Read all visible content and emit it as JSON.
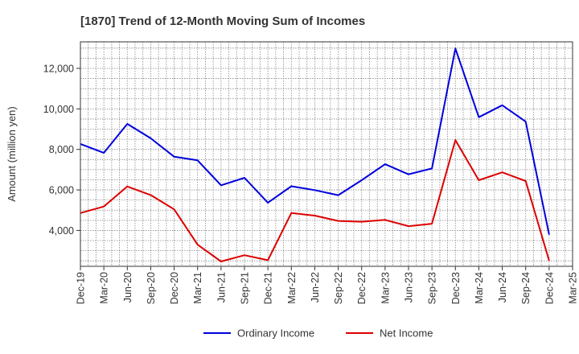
{
  "chart_data": {
    "type": "line",
    "title": "[1870]  Trend of 12-Month Moving Sum of Incomes",
    "xlabel": "",
    "ylabel": "Amount (million yen)",
    "categories": [
      "Dec-19",
      "Mar-20",
      "Jun-20",
      "Sep-20",
      "Dec-20",
      "Mar-21",
      "Jun-21",
      "Sep-21",
      "Dec-21",
      "Mar-22",
      "Jun-22",
      "Sep-22",
      "Dec-22",
      "Mar-23",
      "Jun-23",
      "Sep-23",
      "Dec-23",
      "Mar-24",
      "Jun-24",
      "Sep-24",
      "Dec-24",
      "Mar-25"
    ],
    "y_ticks": [
      4000,
      6000,
      8000,
      10000,
      12000
    ],
    "y_tick_labels": [
      "4,000",
      "6,000",
      "8,000",
      "10,000",
      "12,000"
    ],
    "ylim": [
      2230,
      13310
    ],
    "grid": true,
    "legend_position": "bottom",
    "series": [
      {
        "name": "Ordinary Income",
        "color": "#0000dd",
        "values": [
          8270,
          7830,
          9260,
          8550,
          7640,
          7460,
          6230,
          6600,
          5370,
          6180,
          5990,
          5740,
          6480,
          7270,
          6770,
          7060,
          12980,
          9590,
          10180,
          9370,
          3790,
          null
        ]
      },
      {
        "name": "Net Income",
        "color": "#dd0000",
        "values": [
          4860,
          5180,
          6170,
          5750,
          5040,
          3300,
          2470,
          2780,
          2530,
          4860,
          4730,
          4470,
          4430,
          4520,
          4210,
          4330,
          8460,
          6480,
          6870,
          6440,
          2500,
          null
        ]
      }
    ]
  }
}
